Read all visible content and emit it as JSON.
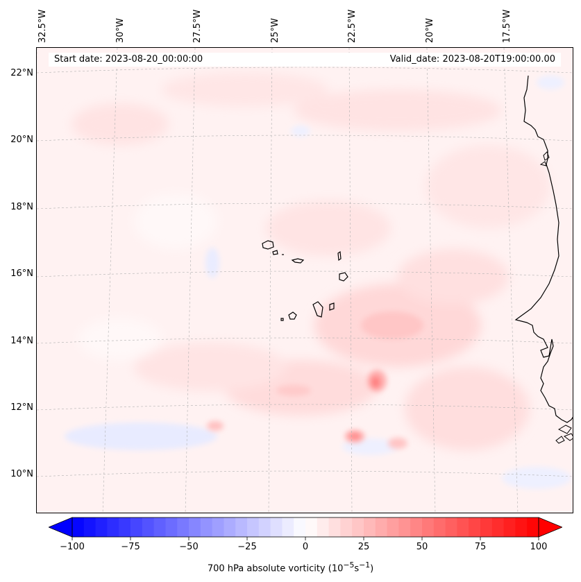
{
  "figure": {
    "start_date_text": "Start date: 2023-08-20_00:00:00",
    "valid_date_text": "Valid_date: 2023-08-20T19:00:00.00",
    "colorbar_label_prefix": "700 hPa absolute vorticity (10",
    "colorbar_label_exp1": "−5",
    "colorbar_label_mid": "s",
    "colorbar_label_exp2": "−1",
    "colorbar_label_suffix": ")"
  },
  "map": {
    "field": "700 hPa absolute vorticity",
    "projection": "lambert-conformal",
    "extent": {
      "lon_min": -32.5,
      "lon_max": -15.5,
      "lat_min": 9.0,
      "lat_max": 22.7
    },
    "gridlines": true,
    "features": [
      "coastline-west-africa",
      "cape-verde-islands"
    ],
    "lon_labels": [
      "32.5°W",
      "30°W",
      "27.5°W",
      "25°W",
      "22.5°W",
      "20°W",
      "17.5°W"
    ],
    "lat_labels": [
      "22°N",
      "20°N",
      "18°N",
      "16°N",
      "14°N",
      "12°N",
      "10°N"
    ],
    "max_vorticity_centers": [
      {
        "lon": -21.5,
        "lat": 12.8,
        "value": 40
      },
      {
        "lon": -22.2,
        "lat": 11.2,
        "value": 35
      },
      {
        "lon": -21.0,
        "lat": 14.6,
        "value": 18
      }
    ]
  },
  "colorbar": {
    "min": -100,
    "max": 100,
    "extend": "both",
    "colormap": "bwr",
    "tick_labels": [
      "−100",
      "−75",
      "−50",
      "−25",
      "0",
      "25",
      "50",
      "75",
      "100"
    ],
    "colors": {
      "negative": "#0000ff",
      "zero": "#ffffff",
      "positive": "#ff0000"
    }
  }
}
